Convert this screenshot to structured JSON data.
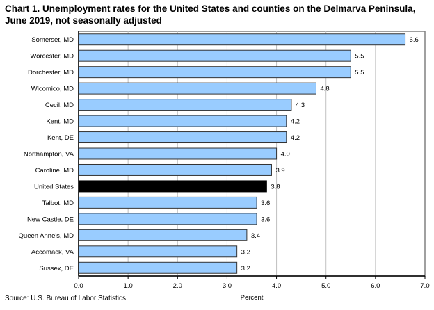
{
  "chart_data": {
    "type": "bar",
    "orientation": "horizontal",
    "title_line1": "Chart 1. Unemployment rates for the United States and counties on the Delmarva Peninsula,",
    "title_line2": "June 2019, not seasonally adjusted",
    "xlabel": "Percent",
    "ylabel": "",
    "xlim": [
      0,
      7.0
    ],
    "xticks": [
      "0.0",
      "1.0",
      "2.0",
      "3.0",
      "4.0",
      "5.0",
      "6.0",
      "7.0"
    ],
    "grid": true,
    "categories": [
      "Somerset, MD",
      "Worcester, MD",
      "Dorchester, MD",
      "Wicomico, MD",
      "Cecil, MD",
      "Kent, MD",
      "Kent, DE",
      "Northampton, VA",
      "Caroline, MD",
      "United States",
      "Talbot, MD",
      "New Castle, DE",
      "Queen Anne's, MD",
      "Accomack, VA",
      "Sussex, DE"
    ],
    "values": [
      6.6,
      5.5,
      5.5,
      4.8,
      4.3,
      4.2,
      4.2,
      4.0,
      3.9,
      3.8,
      3.6,
      3.6,
      3.4,
      3.2,
      3.2
    ],
    "value_labels": [
      "6.6",
      "5.5",
      "5.5",
      "4.8",
      "4.3",
      "4.2",
      "4.2",
      "4.0",
      "3.9",
      "3.8",
      "3.6",
      "3.6",
      "3.4",
      "3.2",
      "3.2"
    ],
    "highlight": "United States",
    "colors": {
      "bar": "#99ccff",
      "highlight": "#000000",
      "grid": "#c0c0c0",
      "axis": "#808080"
    },
    "source": "Source: U.S. Bureau of Labor Statistics."
  }
}
